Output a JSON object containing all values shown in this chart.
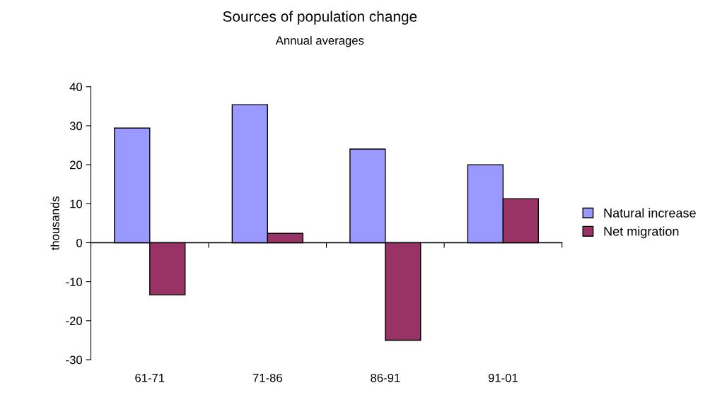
{
  "chart_data": {
    "type": "bar",
    "title": "Sources of population change",
    "subtitle": "Annual averages",
    "ylabel": "thousands",
    "categories": [
      "61-71",
      "71-86",
      "86-91",
      "91-01"
    ],
    "series": [
      {
        "name": "Natural increase",
        "color": "#9999ff",
        "values": [
          29.4,
          35.4,
          24.0,
          20.0
        ]
      },
      {
        "name": "Net migration",
        "color": "#993366",
        "values": [
          -13.4,
          2.4,
          -25.0,
          11.3
        ]
      }
    ],
    "ylim": [
      -30,
      40
    ],
    "yticks": [
      -30,
      -20,
      -10,
      0,
      10,
      20,
      30,
      40
    ],
    "legend": "right"
  }
}
